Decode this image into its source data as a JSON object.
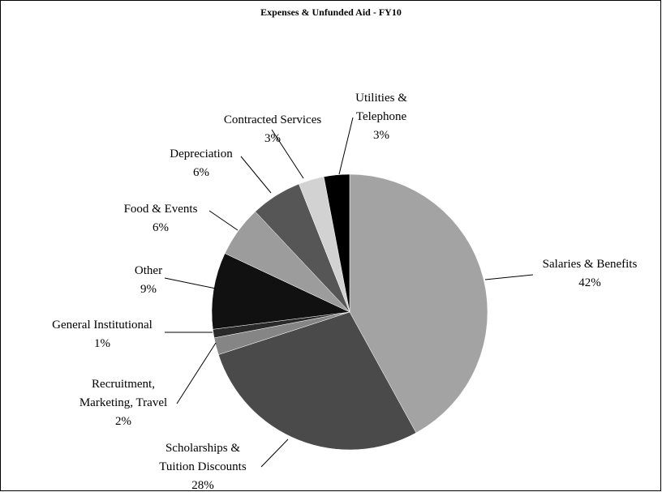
{
  "chart_data": {
    "type": "pie",
    "title": "Expenses & Unfunded Aid - FY10",
    "categories": [
      "Salaries & Benefits",
      "Scholarships &\nTuition Discounts",
      "Recruitment,\nMarketing, Travel",
      "General Institutional",
      "Other",
      "Food & Events",
      "Depreciation",
      "Contracted Services",
      "Utilities &\nTelephone"
    ],
    "values": [
      42,
      28,
      2,
      1,
      9,
      6,
      6,
      3,
      3
    ],
    "value_labels": [
      "42%",
      "28%",
      "2%",
      "1%",
      "9%",
      "6%",
      "6%",
      "3%",
      "3%"
    ],
    "colors": [
      "#a3a3a3",
      "#4a4a4a",
      "#858585",
      "#2a2a2a",
      "#111111",
      "#9c9c9c",
      "#565656",
      "#d2d2d2",
      "#000000"
    ]
  }
}
